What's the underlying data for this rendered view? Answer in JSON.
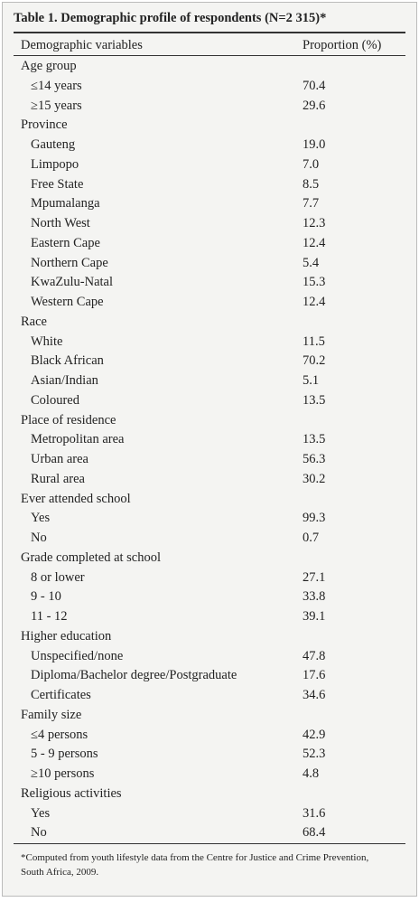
{
  "table": {
    "title": "Table 1. Demographic profile of respondents (N=2 315)*",
    "columns": [
      "Demographic variables",
      "Proportion (%)"
    ],
    "groups": [
      {
        "label": "Age group",
        "rows": [
          {
            "label": "≤14 years",
            "value": "70.4"
          },
          {
            "label": "≥15 years",
            "value": "29.6"
          }
        ]
      },
      {
        "label": "Province",
        "rows": [
          {
            "label": "Gauteng",
            "value": "19.0"
          },
          {
            "label": "Limpopo",
            "value": "7.0"
          },
          {
            "label": "Free State",
            "value": "8.5"
          },
          {
            "label": "Mpumalanga",
            "value": "7.7"
          },
          {
            "label": "North West",
            "value": "12.3"
          },
          {
            "label": "Eastern Cape",
            "value": "12.4"
          },
          {
            "label": "Northern Cape",
            "value": "5.4"
          },
          {
            "label": "KwaZulu-Natal",
            "value": "15.3"
          },
          {
            "label": "Western Cape",
            "value": "12.4"
          }
        ]
      },
      {
        "label": "Race",
        "rows": [
          {
            "label": "White",
            "value": "11.5"
          },
          {
            "label": "Black African",
            "value": "70.2"
          },
          {
            "label": "Asian/Indian",
            "value": "5.1"
          },
          {
            "label": "Coloured",
            "value": "13.5"
          }
        ]
      },
      {
        "label": "Place of residence",
        "rows": [
          {
            "label": "Metropolitan area",
            "value": "13.5"
          },
          {
            "label": "Urban area",
            "value": "56.3"
          },
          {
            "label": "Rural area",
            "value": "30.2"
          }
        ]
      },
      {
        "label": "Ever attended school",
        "rows": [
          {
            "label": "Yes",
            "value": "99.3"
          },
          {
            "label": "No",
            "value": "0.7"
          }
        ]
      },
      {
        "label": "Grade completed at school",
        "rows": [
          {
            "label": "8 or lower",
            "value": "27.1"
          },
          {
            "label": "9 - 10",
            "value": "33.8"
          },
          {
            "label": "11 - 12",
            "value": "39.1"
          }
        ]
      },
      {
        "label": "Higher education",
        "rows": [
          {
            "label": "Unspecified/none",
            "value": "47.8"
          },
          {
            "label": "Diploma/Bachelor degree/Postgraduate",
            "value": "17.6"
          },
          {
            "label": "Certificates",
            "value": "34.6"
          }
        ]
      },
      {
        "label": "Family size",
        "rows": [
          {
            "label": "≤4 persons",
            "value": "42.9"
          },
          {
            "label": "5 - 9 persons",
            "value": "52.3"
          },
          {
            "label": "≥10 persons",
            "value": "4.8"
          }
        ]
      },
      {
        "label": "Religious activities",
        "rows": [
          {
            "label": "Yes",
            "value": "31.6"
          },
          {
            "label": "No",
            "value": "68.4"
          }
        ]
      }
    ],
    "footnote": "*Computed from youth lifestyle data from the Centre for Justice and Crime Prevention, South Africa, 2009."
  }
}
